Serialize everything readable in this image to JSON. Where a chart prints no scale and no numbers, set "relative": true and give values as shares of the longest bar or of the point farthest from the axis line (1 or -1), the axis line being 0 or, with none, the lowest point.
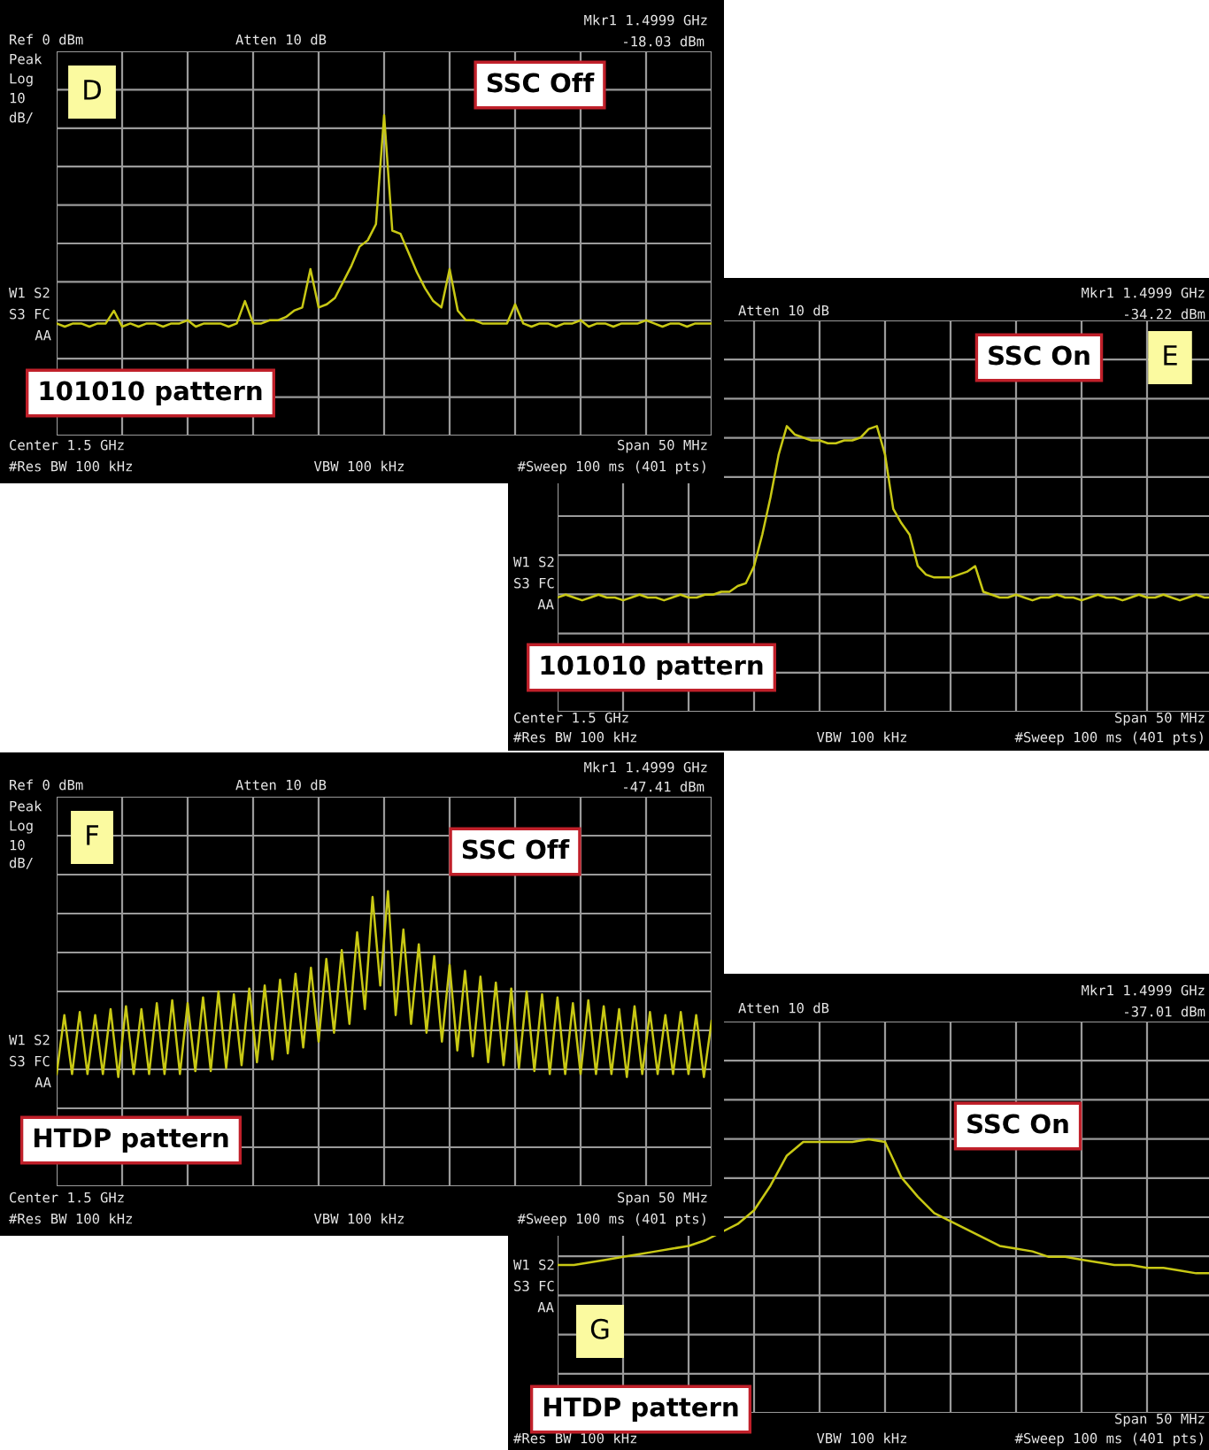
{
  "chart_data": [
    {
      "type": "line",
      "relative": true,
      "grid": true,
      "tick_labels": false,
      "line_style": "solid",
      "categories": [
        null,
        null,
        null,
        null,
        null,
        null,
        null,
        null,
        null,
        null,
        null,
        null,
        null,
        null,
        null,
        null,
        null,
        null,
        null,
        null,
        null,
        null,
        null,
        null,
        null,
        null,
        null,
        null,
        null,
        null,
        null,
        null,
        null,
        null,
        null,
        null,
        null,
        null,
        null,
        null,
        null,
        null,
        null,
        null,
        null,
        null,
        null,
        null,
        null,
        null,
        null,
        null,
        null,
        null,
        null,
        null,
        null,
        null,
        null,
        null,
        null,
        null,
        null,
        null,
        null,
        null,
        null,
        null,
        null,
        null,
        null,
        null,
        null,
        null,
        null,
        null,
        null,
        null,
        null,
        null,
        null
      ],
      "series": [
        {
          "color": "#c8c814",
          "values": [
            0.35,
            0.34,
            0.35,
            0.35,
            0.34,
            0.35,
            0.35,
            0.39,
            0.34,
            0.35,
            0.34,
            0.35,
            0.35,
            0.34,
            0.35,
            0.35,
            0.36,
            0.34,
            0.35,
            0.35,
            0.35,
            0.34,
            0.35,
            0.42,
            0.35,
            0.35,
            0.36,
            0.36,
            0.37,
            0.39,
            0.4,
            0.52,
            0.4,
            0.41,
            0.43,
            0.48,
            0.53,
            0.59,
            0.61,
            0.66,
            1.0,
            0.64,
            0.63,
            0.57,
            0.51,
            0.46,
            0.42,
            0.4,
            0.52,
            0.39,
            0.36,
            0.36,
            0.35,
            0.35,
            0.35,
            0.35,
            0.41,
            0.35,
            0.34,
            0.35,
            0.35,
            0.34,
            0.35,
            0.35,
            0.36,
            0.34,
            0.35,
            0.35,
            0.34,
            0.35,
            0.35,
            0.35,
            0.36,
            0.35,
            0.34,
            0.35,
            0.35,
            0.34,
            0.35,
            0.35,
            0.35
          ]
        }
      ],
      "annotations": [
        "Ref 0 dBm",
        "Atten 10 dB",
        "Mkr1 1.4999 GHz",
        "-18.03 dBm",
        "Peak",
        "Log",
        "10",
        "dB/",
        "W1 S2",
        "S3 FC",
        "AA",
        "Center 1.5 GHz",
        "Span 50 MHz",
        "#Res BW 100 kHz",
        "VBW 100 kHz",
        "#Sweep 100 ms (401 pts)",
        "D",
        "SSC Off",
        "101010 pattern"
      ]
    },
    {
      "type": "line",
      "relative": true,
      "grid": true,
      "tick_labels": false,
      "line_style": "solid",
      "categories": [
        null,
        null,
        null,
        null,
        null,
        null,
        null,
        null,
        null,
        null,
        null,
        null,
        null,
        null,
        null,
        null,
        null,
        null,
        null,
        null,
        null,
        null,
        null,
        null,
        null,
        null,
        null,
        null,
        null,
        null,
        null,
        null,
        null,
        null,
        null,
        null,
        null,
        null,
        null,
        null,
        null,
        null,
        null,
        null,
        null,
        null,
        null,
        null,
        null,
        null,
        null,
        null,
        null,
        null,
        null,
        null,
        null,
        null,
        null,
        null,
        null,
        null,
        null,
        null,
        null,
        null,
        null,
        null,
        null,
        null,
        null,
        null,
        null,
        null,
        null,
        null,
        null,
        null,
        null,
        null,
        null
      ],
      "series": [
        {
          "color": "#c8c814",
          "values": [
            0.4,
            0.41,
            0.4,
            0.39,
            0.4,
            0.41,
            0.4,
            0.4,
            0.39,
            0.4,
            0.41,
            0.4,
            0.4,
            0.39,
            0.4,
            0.41,
            0.4,
            0.4,
            0.41,
            0.41,
            0.42,
            0.42,
            0.44,
            0.45,
            0.51,
            0.62,
            0.75,
            0.9,
            1.0,
            0.97,
            0.96,
            0.95,
            0.95,
            0.94,
            0.94,
            0.95,
            0.95,
            0.96,
            0.99,
            1.0,
            0.9,
            0.71,
            0.66,
            0.62,
            0.51,
            0.48,
            0.47,
            0.47,
            0.47,
            0.48,
            0.49,
            0.51,
            0.42,
            0.41,
            0.4,
            0.4,
            0.41,
            0.4,
            0.39,
            0.4,
            0.4,
            0.41,
            0.4,
            0.4,
            0.39,
            0.4,
            0.41,
            0.4,
            0.4,
            0.39,
            0.4,
            0.41,
            0.4,
            0.4,
            0.41,
            0.4,
            0.39,
            0.4,
            0.41,
            0.4,
            0.4
          ]
        }
      ],
      "annotations": [
        "Atten 10 dB",
        "Mkr1 1.4999 GHz",
        "-34.22 dBm",
        "W1 S2",
        "S3 FC",
        "AA",
        "Center 1.5 GHz",
        "Span 50 MHz",
        "#Res BW 100 kHz",
        "VBW 100 kHz",
        "#Sweep 100 ms (401 pts)",
        "SSC On",
        "E",
        "101010 pattern"
      ]
    },
    {
      "type": "line",
      "relative": true,
      "grid": true,
      "tick_labels": false,
      "line_style": "solid",
      "categories": [
        null,
        null,
        null,
        null,
        null,
        null,
        null,
        null,
        null,
        null,
        null,
        null,
        null,
        null,
        null,
        null,
        null,
        null,
        null,
        null,
        null,
        null,
        null,
        null,
        null,
        null,
        null,
        null,
        null,
        null,
        null,
        null,
        null,
        null,
        null,
        null,
        null,
        null,
        null,
        null,
        null,
        null,
        null,
        null,
        null,
        null,
        null,
        null,
        null,
        null,
        null,
        null,
        null,
        null,
        null,
        null,
        null,
        null,
        null,
        null,
        null,
        null,
        null,
        null,
        null,
        null,
        null,
        null,
        null,
        null,
        null,
        null,
        null,
        null,
        null,
        null,
        null,
        null,
        null,
        null,
        null,
        null,
        null,
        null,
        null,
        null
      ],
      "series": [
        {
          "color": "#c8c814",
          "values": [
            0.38,
            0.58,
            0.38,
            0.59,
            0.38,
            0.58,
            0.38,
            0.6,
            0.37,
            0.61,
            0.38,
            0.6,
            0.38,
            0.62,
            0.38,
            0.63,
            0.38,
            0.62,
            0.39,
            0.64,
            0.39,
            0.66,
            0.4,
            0.65,
            0.41,
            0.67,
            0.42,
            0.68,
            0.43,
            0.7,
            0.45,
            0.72,
            0.47,
            0.74,
            0.49,
            0.77,
            0.52,
            0.8,
            0.55,
            0.86,
            0.6,
            0.98,
            0.68,
            1.0,
            0.58,
            0.87,
            0.55,
            0.82,
            0.52,
            0.78,
            0.49,
            0.75,
            0.46,
            0.73,
            0.44,
            0.71,
            0.42,
            0.69,
            0.41,
            0.67,
            0.4,
            0.66,
            0.39,
            0.65,
            0.38,
            0.64,
            0.38,
            0.62,
            0.38,
            0.63,
            0.38,
            0.61,
            0.38,
            0.6,
            0.37,
            0.61,
            0.38,
            0.59,
            0.38,
            0.58,
            0.38,
            0.59,
            0.38,
            0.58,
            0.37,
            0.56
          ]
        }
      ],
      "annotations": [
        "Ref 0 dBm",
        "Atten 10 dB",
        "Mkr1 1.4999 GHz",
        "-47.41 dBm",
        "Peak",
        "Log",
        "10",
        "dB/",
        "W1 S2",
        "S3 FC",
        "AA",
        "Center 1.5 GHz",
        "Span 50 MHz",
        "#Res BW 100 kHz",
        "VBW 100 kHz",
        "#Sweep 100 ms (401 pts)",
        "F",
        "SSC Off",
        "HTDP pattern"
      ]
    },
    {
      "type": "line",
      "relative": true,
      "grid": true,
      "tick_labels": false,
      "line_style": "solid",
      "categories": [
        null,
        null,
        null,
        null,
        null,
        null,
        null,
        null,
        null,
        null,
        null,
        null,
        null,
        null,
        null,
        null,
        null,
        null,
        null,
        null,
        null,
        null,
        null,
        null,
        null,
        null,
        null,
        null,
        null,
        null,
        null,
        null,
        null,
        null,
        null,
        null,
        null,
        null,
        null,
        null,
        null
      ],
      "series": [
        {
          "color": "#c8c814",
          "values": [
            0.54,
            0.54,
            0.55,
            0.56,
            0.57,
            0.58,
            0.59,
            0.6,
            0.61,
            0.63,
            0.66,
            0.69,
            0.74,
            0.83,
            0.94,
            0.99,
            0.99,
            0.99,
            0.99,
            1.0,
            0.99,
            0.86,
            0.79,
            0.73,
            0.7,
            0.67,
            0.64,
            0.61,
            0.6,
            0.59,
            0.57,
            0.57,
            0.56,
            0.55,
            0.54,
            0.54,
            0.53,
            0.53,
            0.52,
            0.51,
            0.51
          ]
        }
      ],
      "annotations": [
        "Atten 10 dB",
        "Mkr1 1.4999 GHz",
        "-37.01 dBm",
        "W1 S2",
        "S3 FC",
        "AA",
        "Span 50 MHz",
        "#Res BW 100 kHz",
        "VBW 100 kHz",
        "#Sweep 100 ms (401 pts)",
        "SSC On",
        "G",
        "HTDP pattern"
      ]
    }
  ]
}
